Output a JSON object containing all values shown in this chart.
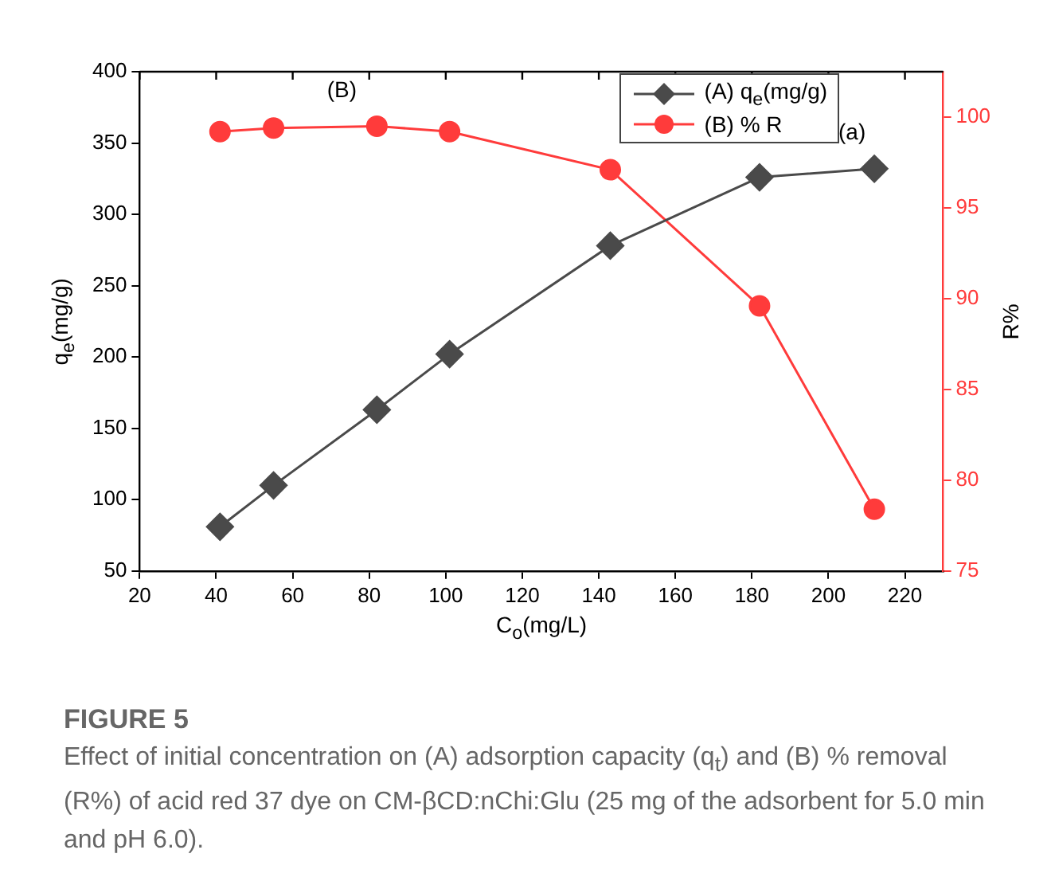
{
  "chart_data": {
    "type": "line",
    "title": "FIGURE 5",
    "xlabel": "C$_{o}$(mg/L)",
    "ylabel": "q$_{e}$(mg/g)",
    "y2label": "R%",
    "x": [
      41,
      55,
      82,
      101,
      143,
      182,
      212
    ],
    "series": [
      {
        "name": "(A) q$_{e}$(mg/g)",
        "color": "#4a4a4a",
        "marker": "diamond",
        "values": [
          81,
          110,
          163,
          202,
          278,
          326,
          332
        ]
      },
      {
        "name": "(B) % R",
        "color": "#ff3b3b",
        "marker": "circle",
        "axis": "y2",
        "values": [
          99.2,
          99.4,
          99.5,
          99.2,
          97.1,
          89.6,
          78.4
        ]
      }
    ],
    "xlim": [
      20,
      230
    ],
    "xticks": [
      20,
      40,
      60,
      80,
      100,
      120,
      140,
      160,
      180,
      200,
      220
    ],
    "ylim": [
      50,
      400
    ],
    "yticks": [
      50,
      100,
      150,
      200,
      250,
      300,
      350,
      400
    ],
    "y2lim": [
      75,
      102.5
    ],
    "y2ticks": [
      75,
      80,
      85,
      90,
      95,
      100
    ],
    "grid": false,
    "legend": "top right",
    "annotations": [
      "(B)",
      "(a)",
      "Effect of initial concentration on (A) adsorption capacity (q$_{t}$) and (B) % removal (R%) of acid red 37 dye on CM-βCD:nChi:Glu (25 mg of the adsorbent for 5.0 min and pH 6.0)."
    ]
  }
}
